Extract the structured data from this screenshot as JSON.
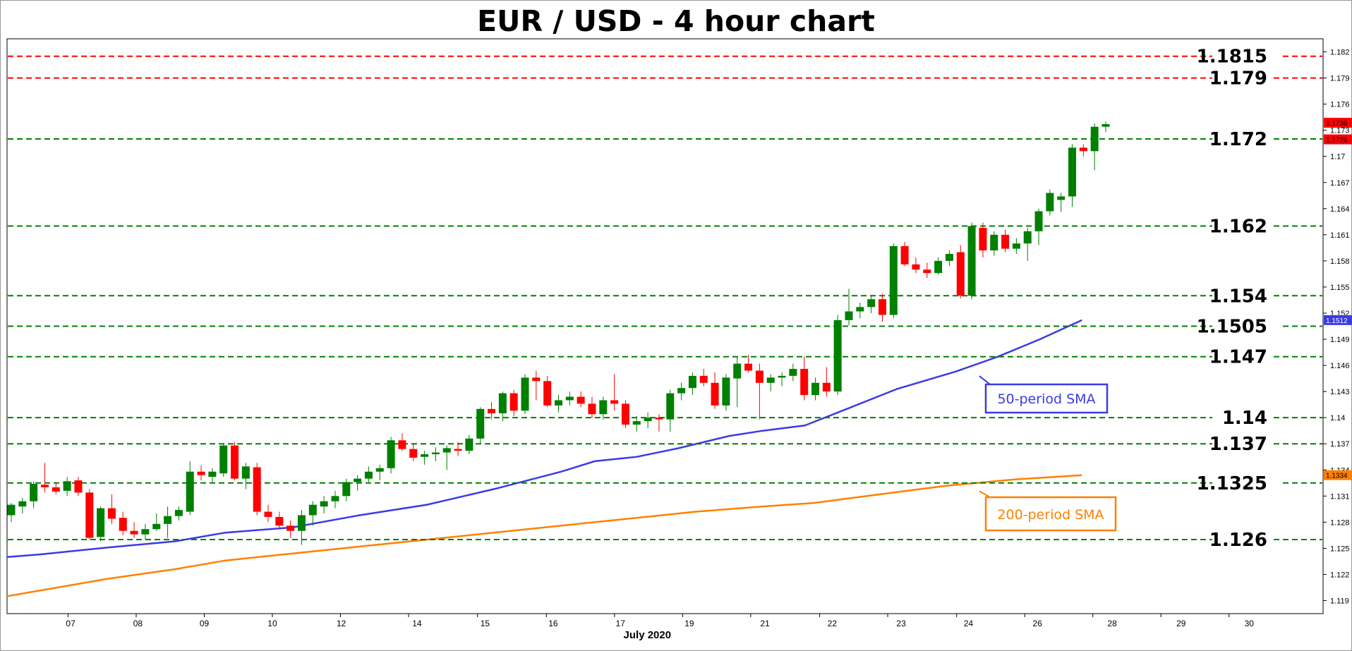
{
  "chart_data": {
    "type": "candlestick",
    "title": "EUR / USD - 4 hour chart",
    "xlabel": "July 2020",
    "ylim": [
      1.1175,
      1.1835
    ],
    "y_ticks": [
      "1.182",
      "1.179",
      "1.176",
      "1.173",
      "1.17",
      "1.167",
      "1.164",
      "1.161",
      "1.158",
      "1.155",
      "1.152",
      "1.149",
      "1.146",
      "1.143",
      "1.14",
      "1.137",
      "1.134",
      "1.131",
      "1.128",
      "1.125",
      "1.122",
      "1.119"
    ],
    "x_tick_labels": [
      "07",
      "08",
      "09",
      "10",
      "12",
      "14",
      "15",
      "16",
      "17",
      "19",
      "21",
      "22",
      "23",
      "24",
      "26",
      "28",
      "29",
      "30"
    ],
    "colors": {
      "up": "#008000",
      "down": "#ff0000",
      "sma50": "#3a3ae8",
      "sma200": "#ff8000",
      "level_green": "#008000",
      "level_red": "#ff0000"
    },
    "levels": [
      {
        "value": 1.1815,
        "label": "1.1815",
        "color": "red"
      },
      {
        "value": 1.179,
        "label": "1.179",
        "color": "red"
      },
      {
        "value": 1.172,
        "label": "1.172",
        "color": "green"
      },
      {
        "value": 1.162,
        "label": "1.162",
        "color": "green"
      },
      {
        "value": 1.154,
        "label": "1.154",
        "color": "green"
      },
      {
        "value": 1.1505,
        "label": "1.1505",
        "color": "green"
      },
      {
        "value": 1.147,
        "label": "1.147",
        "color": "green"
      },
      {
        "value": 1.14,
        "label": "1.14",
        "color": "green"
      },
      {
        "value": 1.137,
        "label": "1.137",
        "color": "green"
      },
      {
        "value": 1.1325,
        "label": "1.1325",
        "color": "green"
      },
      {
        "value": 1.126,
        "label": "1.126",
        "color": "green"
      }
    ],
    "candles": [
      [
        1.1288,
        1.1302,
        1.128,
        1.13
      ],
      [
        1.1298,
        1.1308,
        1.129,
        1.1304
      ],
      [
        1.1304,
        1.1327,
        1.1296,
        1.1324
      ],
      [
        1.1323,
        1.1348,
        1.1314,
        1.132
      ],
      [
        1.132,
        1.1326,
        1.1312,
        1.1315
      ],
      [
        1.1316,
        1.1332,
        1.131,
        1.1327
      ],
      [
        1.1328,
        1.1332,
        1.131,
        1.1314
      ],
      [
        1.1314,
        1.1318,
        1.126,
        1.1262
      ],
      [
        1.1263,
        1.1298,
        1.1258,
        1.1296
      ],
      [
        1.1296,
        1.1312,
        1.1278,
        1.1284
      ],
      [
        1.1285,
        1.1292,
        1.1265,
        1.127
      ],
      [
        1.127,
        1.128,
        1.1262,
        1.1266
      ],
      [
        1.1266,
        1.1278,
        1.126,
        1.1272
      ],
      [
        1.1272,
        1.129,
        1.127,
        1.1278
      ],
      [
        1.1278,
        1.1298,
        1.1262,
        1.1287
      ],
      [
        1.1287,
        1.1298,
        1.1282,
        1.1294
      ],
      [
        1.1292,
        1.135,
        1.1288,
        1.1338
      ],
      [
        1.1338,
        1.1345,
        1.1328,
        1.1334
      ],
      [
        1.1332,
        1.1342,
        1.1326,
        1.1338
      ],
      [
        1.1336,
        1.137,
        1.1332,
        1.1368
      ],
      [
        1.1368,
        1.1372,
        1.1328,
        1.133
      ],
      [
        1.133,
        1.1348,
        1.1318,
        1.1344
      ],
      [
        1.1343,
        1.1348,
        1.1288,
        1.1292
      ],
      [
        1.1292,
        1.13,
        1.128,
        1.1286
      ],
      [
        1.1286,
        1.1292,
        1.1272,
        1.1276
      ],
      [
        1.1276,
        1.1282,
        1.1262,
        1.127
      ],
      [
        1.127,
        1.1294,
        1.1254,
        1.1288
      ],
      [
        1.1288,
        1.1304,
        1.1276,
        1.13
      ],
      [
        1.1298,
        1.131,
        1.129,
        1.1304
      ],
      [
        1.1304,
        1.1316,
        1.1296,
        1.131
      ],
      [
        1.131,
        1.133,
        1.1304,
        1.1326
      ],
      [
        1.1326,
        1.1334,
        1.1316,
        1.133
      ],
      [
        1.133,
        1.1344,
        1.1326,
        1.1338
      ],
      [
        1.1338,
        1.1346,
        1.1328,
        1.1342
      ],
      [
        1.1342,
        1.1378,
        1.1336,
        1.1374
      ],
      [
        1.1374,
        1.1382,
        1.1362,
        1.1364
      ],
      [
        1.1364,
        1.137,
        1.135,
        1.1354
      ],
      [
        1.1355,
        1.1362,
        1.1346,
        1.1358
      ],
      [
        1.1358,
        1.1366,
        1.135,
        1.136
      ],
      [
        1.136,
        1.1368,
        1.134,
        1.1365
      ],
      [
        1.1364,
        1.1372,
        1.1356,
        1.1362
      ],
      [
        1.1362,
        1.138,
        1.1358,
        1.1376
      ],
      [
        1.1376,
        1.1412,
        1.137,
        1.141
      ],
      [
        1.141,
        1.1418,
        1.1398,
        1.1405
      ],
      [
        1.1405,
        1.143,
        1.1396,
        1.1428
      ],
      [
        1.1428,
        1.1432,
        1.1402,
        1.1408
      ],
      [
        1.1408,
        1.145,
        1.1404,
        1.1446
      ],
      [
        1.1446,
        1.1454,
        1.142,
        1.1442
      ],
      [
        1.1442,
        1.1448,
        1.1412,
        1.1414
      ],
      [
        1.1414,
        1.1426,
        1.1406,
        1.142
      ],
      [
        1.142,
        1.143,
        1.1414,
        1.1424
      ],
      [
        1.1424,
        1.143,
        1.1412,
        1.1416
      ],
      [
        1.1416,
        1.1424,
        1.14,
        1.1404
      ],
      [
        1.1404,
        1.1424,
        1.1398,
        1.142
      ],
      [
        1.142,
        1.145,
        1.1408,
        1.1416
      ],
      [
        1.1416,
        1.142,
        1.1388,
        1.1392
      ],
      [
        1.1392,
        1.1402,
        1.1384,
        1.1396
      ],
      [
        1.1396,
        1.1406,
        1.1388,
        1.14
      ],
      [
        1.14,
        1.1404,
        1.1384,
        1.1398
      ],
      [
        1.1398,
        1.1432,
        1.1384,
        1.1428
      ],
      [
        1.1428,
        1.144,
        1.142,
        1.1434
      ],
      [
        1.1434,
        1.1452,
        1.1426,
        1.1448
      ],
      [
        1.1448,
        1.1456,
        1.1436,
        1.144
      ],
      [
        1.144,
        1.1452,
        1.141,
        1.1414
      ],
      [
        1.1414,
        1.145,
        1.1408,
        1.1446
      ],
      [
        1.1445,
        1.147,
        1.1412,
        1.1462
      ],
      [
        1.1462,
        1.1472,
        1.1452,
        1.1454
      ],
      [
        1.1454,
        1.1462,
        1.1398,
        1.144
      ],
      [
        1.144,
        1.145,
        1.143,
        1.1446
      ],
      [
        1.1446,
        1.1452,
        1.1436,
        1.1448
      ],
      [
        1.1448,
        1.1462,
        1.1442,
        1.1456
      ],
      [
        1.1456,
        1.147,
        1.142,
        1.1426
      ],
      [
        1.1426,
        1.1446,
        1.142,
        1.144
      ],
      [
        1.144,
        1.1458,
        1.1424,
        1.143
      ],
      [
        1.143,
        1.1518,
        1.1426,
        1.1512
      ],
      [
        1.1512,
        1.1548,
        1.1506,
        1.1522
      ],
      [
        1.1522,
        1.1532,
        1.1514,
        1.1527
      ],
      [
        1.1527,
        1.154,
        1.152,
        1.1536
      ],
      [
        1.1536,
        1.1542,
        1.151,
        1.1518
      ],
      [
        1.1518,
        1.16,
        1.1514,
        1.1597
      ],
      [
        1.1597,
        1.1602,
        1.1574,
        1.1576
      ],
      [
        1.1576,
        1.1584,
        1.1566,
        1.157
      ],
      [
        1.157,
        1.1578,
        1.156,
        1.1566
      ],
      [
        1.1566,
        1.1584,
        1.1564,
        1.158
      ],
      [
        1.158,
        1.1592,
        1.1574,
        1.1588
      ],
      [
        1.159,
        1.1598,
        1.1537,
        1.154
      ],
      [
        1.154,
        1.1624,
        1.1536,
        1.162
      ],
      [
        1.1618,
        1.1624,
        1.1584,
        1.1592
      ],
      [
        1.1592,
        1.1614,
        1.1586,
        1.161
      ],
      [
        1.161,
        1.1616,
        1.159,
        1.1594
      ],
      [
        1.1594,
        1.1606,
        1.1588,
        1.16
      ],
      [
        1.16,
        1.1618,
        1.158,
        1.1614
      ],
      [
        1.1614,
        1.164,
        1.1598,
        1.1637
      ],
      [
        1.1637,
        1.1662,
        1.1632,
        1.1658
      ],
      [
        1.165,
        1.1658,
        1.1636,
        1.1654
      ],
      [
        1.1654,
        1.1714,
        1.1642,
        1.171
      ],
      [
        1.171,
        1.1714,
        1.17,
        1.1706
      ],
      [
        1.1706,
        1.1738,
        1.1684,
        1.1734
      ],
      [
        1.1734,
        1.174,
        1.1728,
        1.1737
      ]
    ],
    "sma50": [
      [
        0,
        1.124
      ],
      [
        40,
        1.1243
      ],
      [
        120,
        1.1251
      ],
      [
        200,
        1.1258
      ],
      [
        260,
        1.1268
      ],
      [
        340,
        1.1274
      ],
      [
        420,
        1.1288
      ],
      [
        500,
        1.13
      ],
      [
        580,
        1.1318
      ],
      [
        660,
        1.1338
      ],
      [
        700,
        1.135
      ],
      [
        750,
        1.1355
      ],
      [
        800,
        1.1365
      ],
      [
        860,
        1.1379
      ],
      [
        900,
        1.1385
      ],
      [
        950,
        1.1391
      ],
      [
        1000,
        1.141
      ],
      [
        1060,
        1.1433
      ],
      [
        1130,
        1.1453
      ],
      [
        1180,
        1.147
      ],
      [
        1230,
        1.149
      ],
      [
        1280,
        1.1512
      ]
    ],
    "sma200": [
      [
        0,
        1.1195
      ],
      [
        60,
        1.1205
      ],
      [
        120,
        1.1215
      ],
      [
        200,
        1.1226
      ],
      [
        260,
        1.1236
      ],
      [
        330,
        1.1243
      ],
      [
        420,
        1.1252
      ],
      [
        520,
        1.1262
      ],
      [
        620,
        1.1272
      ],
      [
        720,
        1.1282
      ],
      [
        820,
        1.1292
      ],
      [
        900,
        1.1298
      ],
      [
        960,
        1.1302
      ],
      [
        1040,
        1.1312
      ],
      [
        1120,
        1.1322
      ],
      [
        1200,
        1.1329
      ],
      [
        1280,
        1.1334
      ]
    ],
    "sma50_label": "50-period SMA",
    "sma200_label": "200-period SMA",
    "price_tags": {
      "current_upper": "1.1736",
      "current_lower": "1.1726",
      "sma50": "1.1512",
      "sma200": "1.1334"
    }
  }
}
